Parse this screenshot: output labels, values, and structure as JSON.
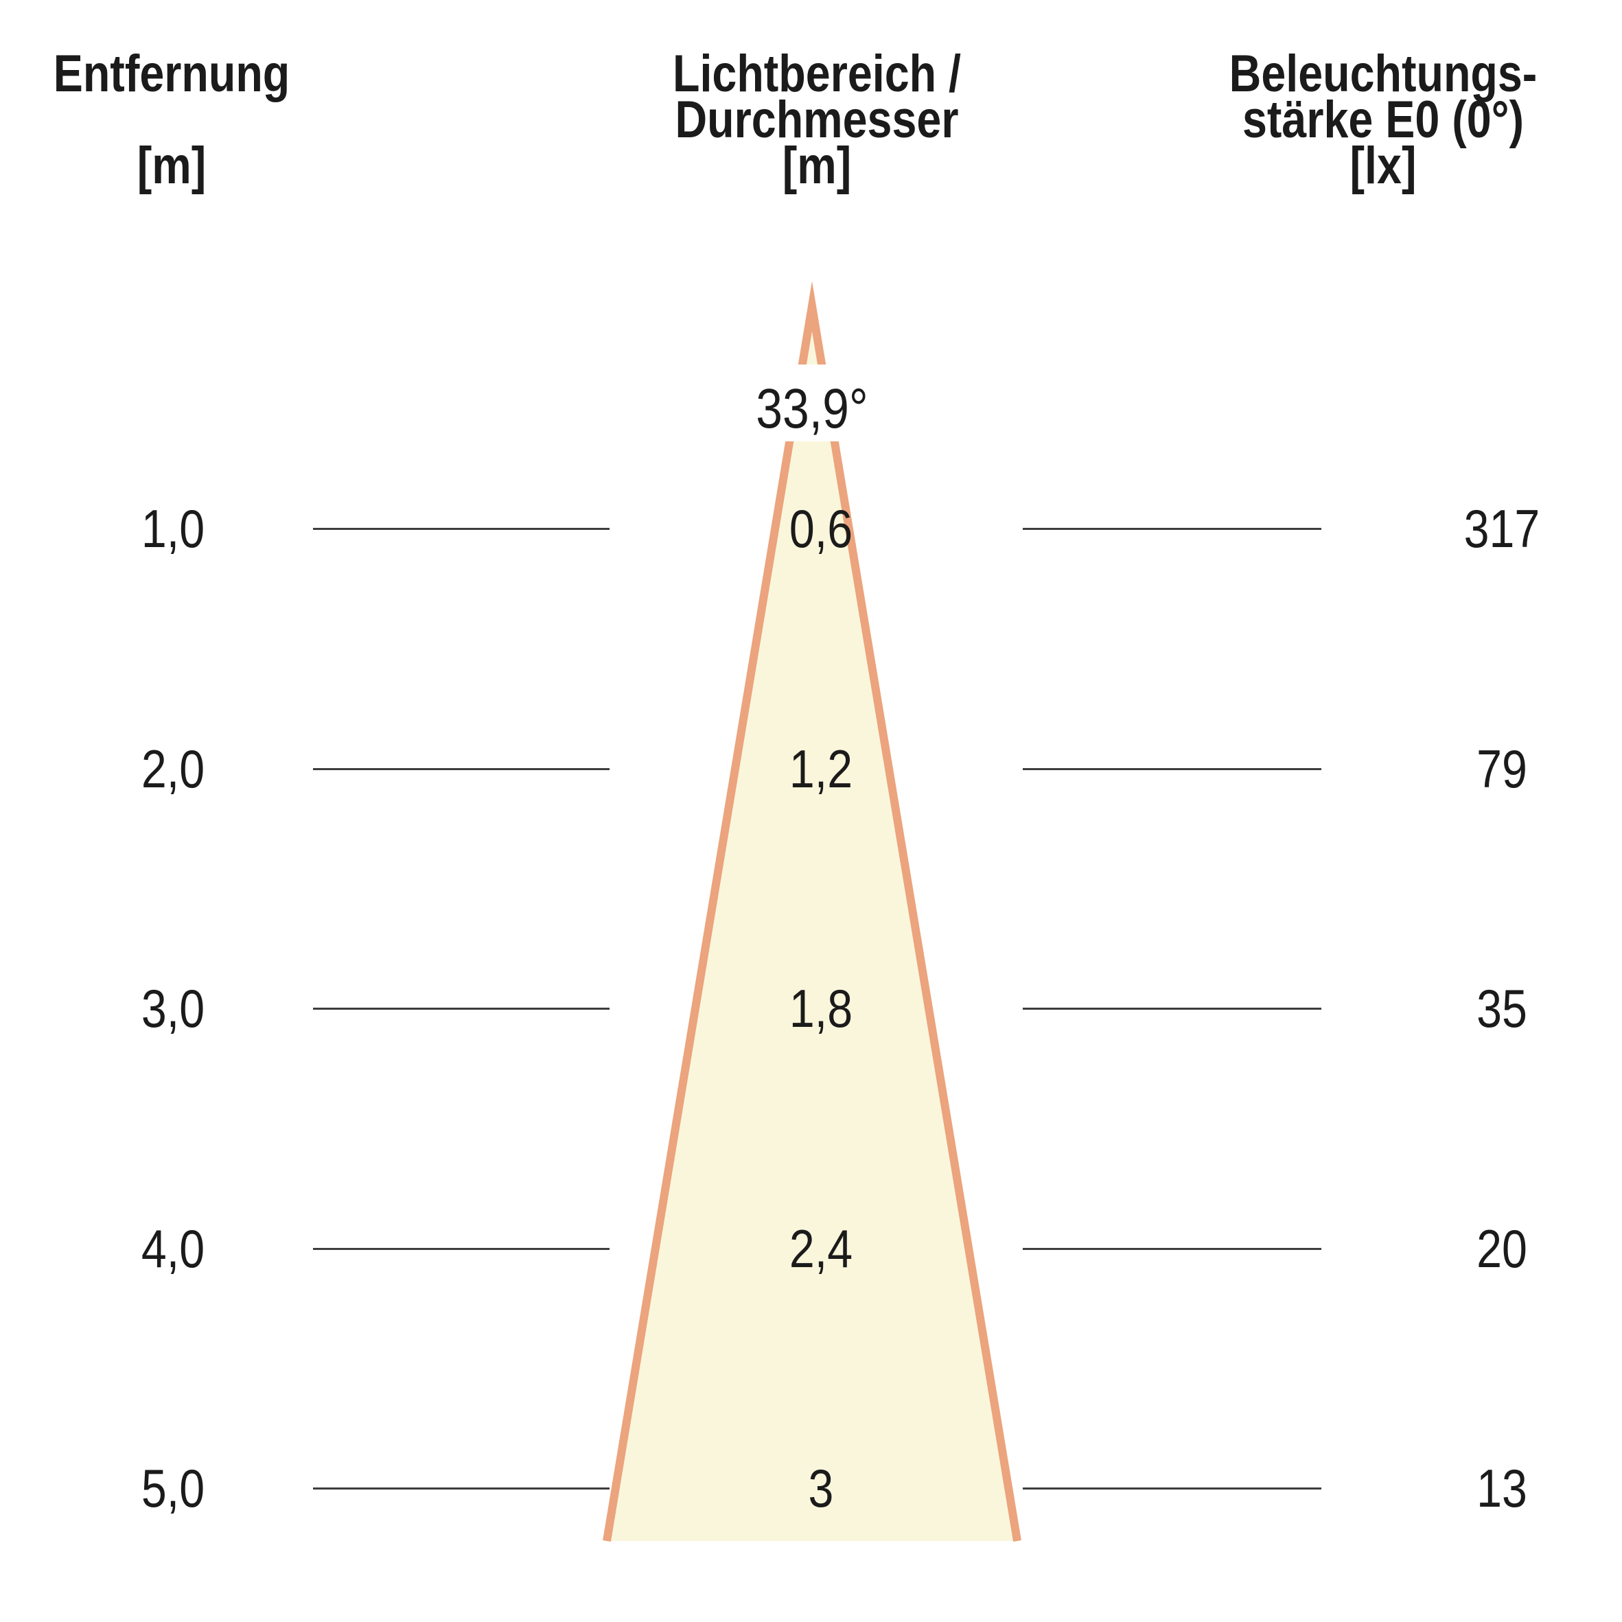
{
  "columns": {
    "distance": {
      "title": "Entfernung",
      "unit": "[m]"
    },
    "beam": {
      "title_line1": "Lichtbereich /",
      "title_line2": "Durchmesser",
      "unit": "[m]"
    },
    "illuminance": {
      "title_line1": "Beleuchtungs-",
      "title_line2": "stärke E0 (0°)",
      "unit": "[lx]"
    }
  },
  "beam_angle": "33,9°",
  "rows": [
    {
      "distance": "1,0",
      "diameter": "0,6",
      "illuminance": "317"
    },
    {
      "distance": "2,0",
      "diameter": "1,2",
      "illuminance": "79"
    },
    {
      "distance": "3,0",
      "diameter": "1,8",
      "illuminance": "35"
    },
    {
      "distance": "4,0",
      "diameter": "2,4",
      "illuminance": "20"
    },
    {
      "distance": "5,0",
      "diameter": "3",
      "illuminance": "13"
    }
  ],
  "colors": {
    "cone_fill": "#FAF6DC",
    "cone_border": "#EBA47D",
    "guide_line": "#3d3d3d",
    "text": "#1b1b1b"
  },
  "chart_data": {
    "type": "table",
    "columns": [
      "Entfernung [m]",
      "Lichtbereich / Durchmesser [m]",
      "Beleuchtungsstärke E0 (0°) [lx]"
    ],
    "rows": [
      [
        1.0,
        0.6,
        317
      ],
      [
        2.0,
        1.2,
        79
      ],
      [
        3.0,
        1.8,
        35
      ],
      [
        4.0,
        2.4,
        20
      ],
      [
        5.0,
        3.0,
        13
      ]
    ],
    "beam_angle_deg": 33.9,
    "annotations": [
      "33,9°"
    ],
    "legend": "none",
    "grid": "off"
  }
}
